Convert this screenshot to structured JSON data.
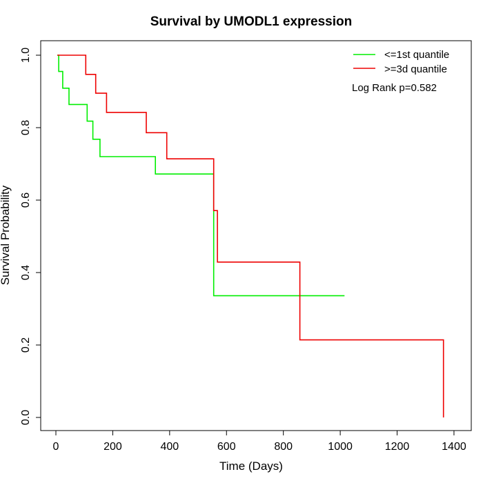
{
  "chart_data": {
    "type": "line",
    "title": "Survival by UMODL1 expression",
    "xlabel": "Time (Days)",
    "ylabel": "Survival Probability",
    "xlim": [
      0,
      1400
    ],
    "ylim": [
      0,
      1
    ],
    "x_ticks": [
      "0",
      "200",
      "400",
      "600",
      "800",
      "1000",
      "1200",
      "1400"
    ],
    "y_ticks": [
      "0.0",
      "0.2",
      "0.4",
      "0.6",
      "0.8",
      "1.0"
    ],
    "grid": false,
    "legend_position": "top-right",
    "annotation": "Log Rank p=0.582",
    "series": [
      {
        "name": "<=1st quantile",
        "color": "#00ee00",
        "step_points": [
          [
            5,
            1.0
          ],
          [
            10,
            0.955
          ],
          [
            24,
            0.909
          ],
          [
            46,
            0.864
          ],
          [
            110,
            0.818
          ],
          [
            130,
            0.768
          ],
          [
            155,
            0.72
          ],
          [
            350,
            0.672
          ],
          [
            555,
            0.336
          ],
          [
            1015,
            0.336
          ]
        ]
      },
      {
        "name": ">=3d quantile",
        "color": "#ee0000",
        "step_points": [
          [
            5,
            1.0
          ],
          [
            105,
            0.947
          ],
          [
            140,
            0.895
          ],
          [
            178,
            0.842
          ],
          [
            318,
            0.786
          ],
          [
            390,
            0.714
          ],
          [
            555,
            0.571
          ],
          [
            568,
            0.429
          ],
          [
            858,
            0.214
          ],
          [
            1363,
            0.214
          ],
          [
            1363,
            0.0
          ]
        ]
      }
    ]
  }
}
